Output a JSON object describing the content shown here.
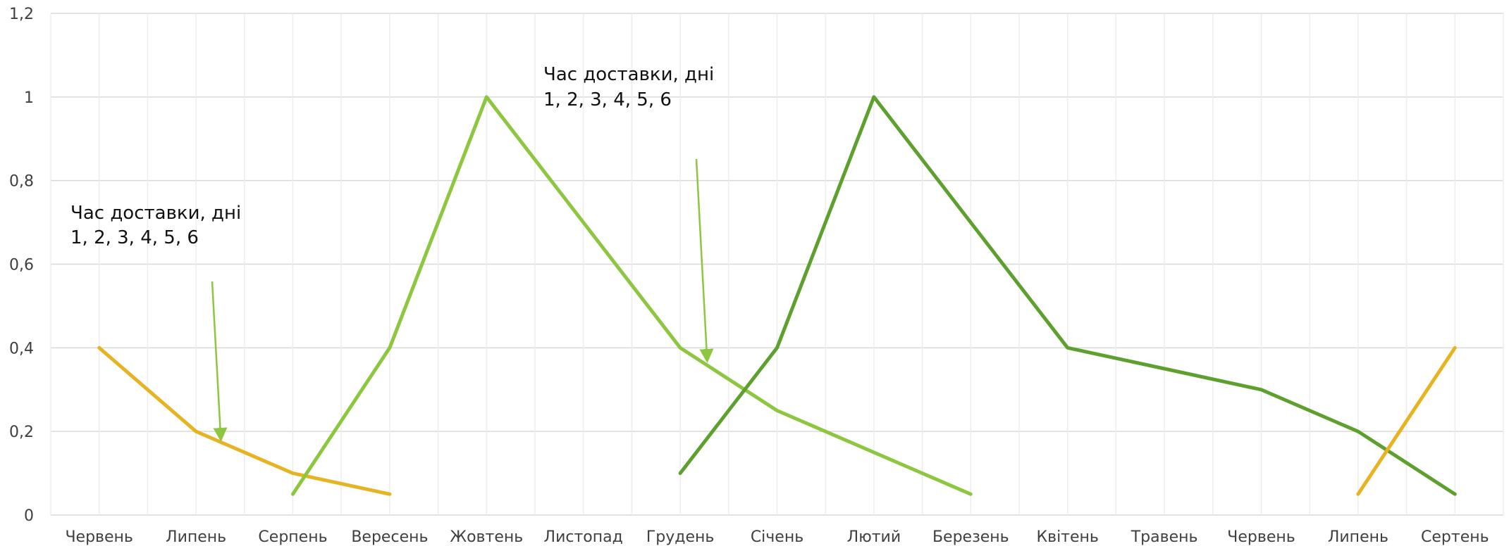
{
  "chart_data": {
    "type": "line",
    "categories": [
      "Червень",
      "Липень",
      "Серпень",
      "Вересень",
      "Жовтень",
      "Листопад",
      "Грудень",
      "Січень",
      "Лютий",
      "Березень",
      "Квітень",
      "Травень",
      "Червень",
      "Липень",
      "Сертень"
    ],
    "y_ticks": [
      "0",
      "0,2",
      "0,4",
      "0,6",
      "0,8",
      "1",
      "1,2"
    ],
    "ylim": [
      0,
      1.2
    ],
    "grid": true,
    "series": [
      {
        "color": "#E6B422",
        "values": [
          0.4,
          0.2,
          0.1,
          0.05,
          null,
          null,
          null,
          null,
          null,
          null,
          null,
          null,
          null,
          null,
          null
        ]
      },
      {
        "color": "#8DC63F",
        "values": [
          null,
          null,
          0.05,
          0.4,
          1.0,
          0.7,
          0.4,
          0.25,
          0.15,
          0.05,
          null,
          null,
          null,
          null,
          null
        ]
      },
      {
        "color": "#5DA02E",
        "values": [
          null,
          null,
          null,
          null,
          null,
          null,
          0.1,
          0.4,
          1.0,
          0.7,
          0.4,
          0.35,
          0.3,
          0.2,
          0.05
        ]
      },
      {
        "color": "#E6B422",
        "values": [
          null,
          null,
          null,
          null,
          null,
          null,
          null,
          null,
          null,
          null,
          null,
          null,
          null,
          0.05,
          0.4
        ]
      }
    ],
    "annotations": [
      {
        "lines": [
          "Час доставки, дні",
          "1, 2, 3, 4, 5, 6"
        ]
      },
      {
        "lines": [
          "Час доставки, дні",
          "1, 2, 3, 4, 5, 6"
        ]
      }
    ],
    "arrow_color": "#8DC63F"
  }
}
